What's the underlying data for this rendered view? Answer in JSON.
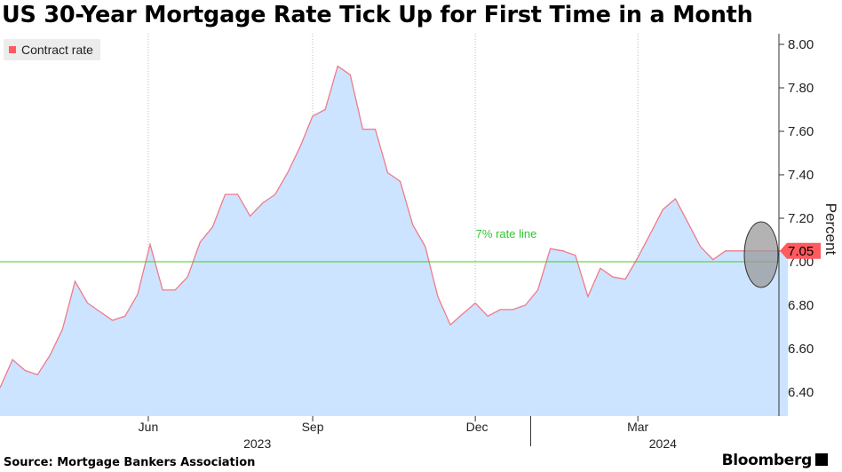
{
  "header": {
    "title": "US 30-Year Mortgage Rate Tick Up for First Time in a Month"
  },
  "legend": {
    "label": "Contract rate",
    "color": "#ff5a5f"
  },
  "footer": {
    "source": "Source: Mortgage Bankers Association",
    "brand": "Bloomberg"
  },
  "colors": {
    "area_fill": "#cce4ff",
    "line": "#f07a8a",
    "ref_line": "#44cc22",
    "ref_text": "#2ec82e",
    "gridline": "#bbbbbb",
    "last_label_bg": "#ff5a5f",
    "highlight": "#9a9a9a"
  },
  "chart_data": {
    "type": "area",
    "title": "US 30-Year Mortgage Rate Tick Up for First Time in a Month",
    "ylabel": "Percent",
    "ylim": [
      6.25,
      8.05
    ],
    "yticks": [
      "6.40",
      "6.60",
      "6.80",
      "7.00",
      "7.20",
      "7.40",
      "7.60",
      "7.80",
      "8.00"
    ],
    "x_tick_labels": [
      "Jun",
      "Sep",
      "Dec",
      "Mar"
    ],
    "year_labels": [
      "2023",
      "2024"
    ],
    "reference_line": {
      "value": 7.0,
      "label": "7% rate line"
    },
    "last_value_label": "7.05",
    "grid": true,
    "legend_position": "top-left",
    "series": [
      {
        "name": "Contract rate",
        "x": [
          "2023-03-10",
          "2023-03-17",
          "2023-03-24",
          "2023-03-31",
          "2023-04-07",
          "2023-04-14",
          "2023-04-21",
          "2023-04-28",
          "2023-05-05",
          "2023-05-12",
          "2023-05-19",
          "2023-05-26",
          "2023-06-02",
          "2023-06-09",
          "2023-06-16",
          "2023-06-23",
          "2023-06-30",
          "2023-07-07",
          "2023-07-14",
          "2023-07-21",
          "2023-07-28",
          "2023-08-04",
          "2023-08-11",
          "2023-08-18",
          "2023-08-25",
          "2023-09-01",
          "2023-09-08",
          "2023-09-15",
          "2023-09-22",
          "2023-09-29",
          "2023-10-06",
          "2023-10-13",
          "2023-10-20",
          "2023-10-27",
          "2023-11-03",
          "2023-11-10",
          "2023-11-17",
          "2023-11-24",
          "2023-12-01",
          "2023-12-08",
          "2023-12-15",
          "2023-12-22",
          "2023-12-29",
          "2024-01-05",
          "2024-01-12",
          "2024-01-19",
          "2024-01-26",
          "2024-02-02",
          "2024-02-09",
          "2024-02-16",
          "2024-02-23",
          "2024-03-01",
          "2024-03-08",
          "2024-03-15",
          "2024-03-22",
          "2024-03-29",
          "2024-04-05",
          "2024-04-12",
          "2024-04-19",
          "2024-04-26",
          "2024-05-03",
          "2024-05-10",
          "2024-05-17",
          "2024-05-24"
        ],
        "values": [
          6.42,
          6.55,
          6.5,
          6.48,
          6.57,
          6.69,
          6.91,
          6.81,
          6.77,
          6.73,
          6.75,
          6.85,
          7.08,
          6.87,
          6.87,
          6.93,
          7.09,
          7.16,
          7.31,
          7.31,
          7.21,
          7.27,
          7.31,
          7.41,
          7.53,
          7.67,
          7.7,
          7.9,
          7.86,
          7.61,
          7.61,
          7.41,
          7.37,
          7.17,
          7.07,
          6.84,
          6.71,
          6.76,
          6.81,
          6.75,
          6.78,
          6.78,
          6.8,
          6.87,
          7.06,
          7.05,
          7.03,
          6.84,
          6.97,
          6.93,
          6.92,
          7.02,
          7.13,
          7.24,
          7.29,
          7.18,
          7.07,
          7.01,
          7.05,
          7.05,
          7.05,
          7.05,
          7.05,
          7.05
        ]
      }
    ]
  }
}
